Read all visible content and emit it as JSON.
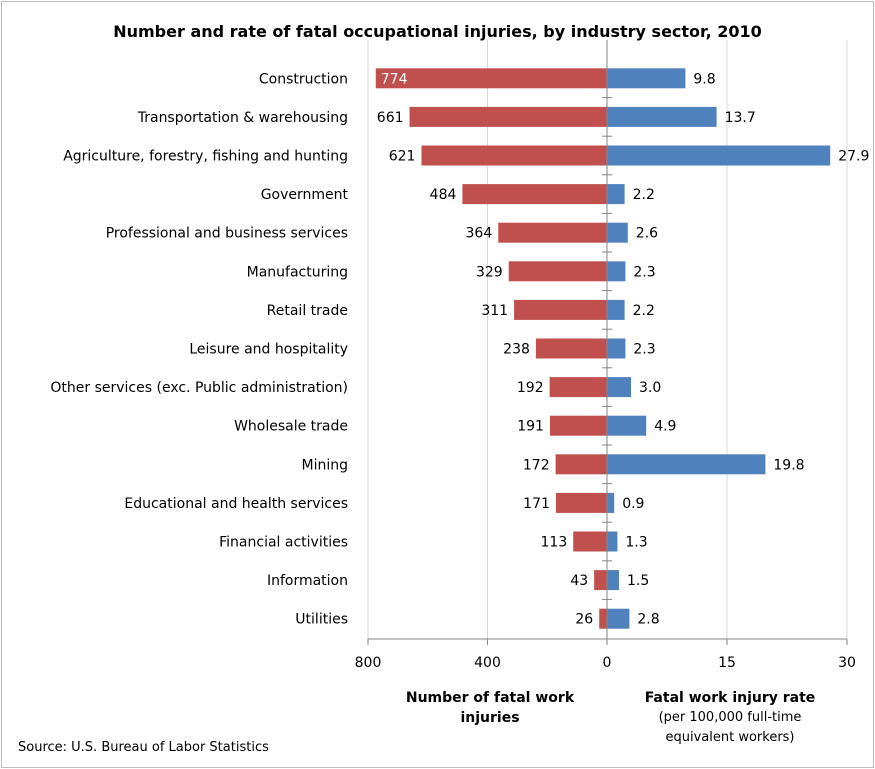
{
  "chart_data": {
    "type": "bar",
    "orientation": "horizontal",
    "title": "Number and rate of fatal occupational injuries, by industry sector, 2010",
    "categories": [
      "Construction",
      "Transportation & warehousing",
      "Agriculture, forestry, fishing and hunting",
      "Government",
      "Professional and business services",
      "Manufacturing",
      "Retail trade",
      "Leisure and hospitality",
      "Other services (exc. Public administration)",
      "Wholesale trade",
      "Mining",
      "Educational and health services",
      "Financial activities",
      "Information",
      "Utilities"
    ],
    "series": [
      {
        "name": "Number of fatal work injuries",
        "side": "left",
        "color": "#c0504d",
        "values": [
          774,
          661,
          621,
          484,
          364,
          329,
          311,
          238,
          192,
          191,
          172,
          171,
          113,
          43,
          26
        ]
      },
      {
        "name": "Fatal work injury rate",
        "side": "right",
        "color": "#4f81bd",
        "values": [
          9.8,
          13.7,
          27.9,
          2.2,
          2.6,
          2.3,
          2.2,
          2.3,
          3.0,
          4.9,
          19.8,
          0.9,
          1.3,
          1.5,
          2.8
        ]
      }
    ],
    "left_axis": {
      "label": "Number of fatal work injuries",
      "lim": [
        800,
        0
      ],
      "ticks": [
        "800",
        "400",
        "0"
      ]
    },
    "right_axis": {
      "label": "Fatal work injury rate",
      "sublabel": "(per 100,000 full-time equivalent workers)",
      "lim": [
        0,
        30
      ],
      "ticks": [
        "15",
        "30"
      ]
    },
    "grid": true,
    "source": "Source: U.S. Bureau of Labor Statistics"
  }
}
